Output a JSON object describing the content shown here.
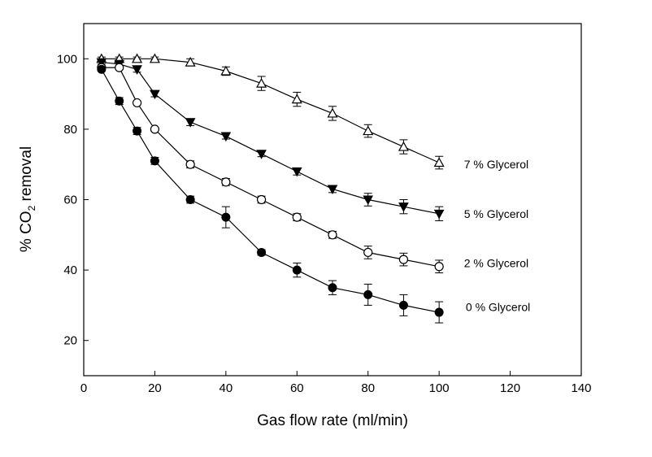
{
  "chart_data": {
    "type": "line",
    "title": "",
    "xlabel": "Gas flow rate (ml/min)",
    "ylabel_parts": [
      "% CO",
      "2",
      " removal"
    ],
    "xlim": [
      0,
      140
    ],
    "ylim": [
      10,
      110
    ],
    "x_ticks": [
      0,
      20,
      40,
      60,
      80,
      100,
      120,
      140
    ],
    "y_ticks": [
      20,
      40,
      60,
      80,
      100
    ],
    "grid": false,
    "legend": "labels at right end of each series",
    "x": [
      5,
      10,
      15,
      20,
      30,
      40,
      50,
      60,
      70,
      80,
      90,
      100
    ],
    "series": [
      {
        "name": "7 % Glycerol",
        "marker": "open-triangle-up",
        "values": [
          100,
          100,
          100,
          100,
          99,
          96.5,
          93,
          88.5,
          84.5,
          79.5,
          75,
          70.5
        ],
        "errors": [
          0.5,
          0.5,
          0.5,
          0.5,
          1,
          1.2,
          2,
          2,
          2,
          1.8,
          2,
          1.8
        ]
      },
      {
        "name": "5 % Glycerol",
        "marker": "filled-triangle-down",
        "values": [
          99,
          98.5,
          97,
          90,
          82,
          78,
          73,
          68,
          63,
          60,
          58,
          56
        ],
        "errors": [
          0.5,
          0.5,
          0.8,
          0.8,
          1,
          0.8,
          0.8,
          1,
          1,
          1.8,
          2,
          2
        ]
      },
      {
        "name": "2 % Glycerol",
        "marker": "open-circle",
        "values": [
          97.5,
          97.5,
          87.5,
          80,
          70,
          65,
          60,
          55,
          50,
          45,
          43,
          41
        ],
        "errors": [
          0.5,
          0.5,
          0.5,
          0.5,
          1,
          1,
          1,
          1,
          1,
          1.8,
          1.8,
          1.8
        ]
      },
      {
        "name": "0 % Glycerol",
        "marker": "filled-circle",
        "values": [
          97,
          88,
          79.5,
          71,
          60,
          55,
          45,
          40,
          35,
          33,
          30,
          28
        ],
        "errors": [
          0.5,
          1,
          1,
          1,
          1,
          3,
          0.8,
          2,
          2,
          3,
          3,
          3
        ]
      }
    ]
  }
}
